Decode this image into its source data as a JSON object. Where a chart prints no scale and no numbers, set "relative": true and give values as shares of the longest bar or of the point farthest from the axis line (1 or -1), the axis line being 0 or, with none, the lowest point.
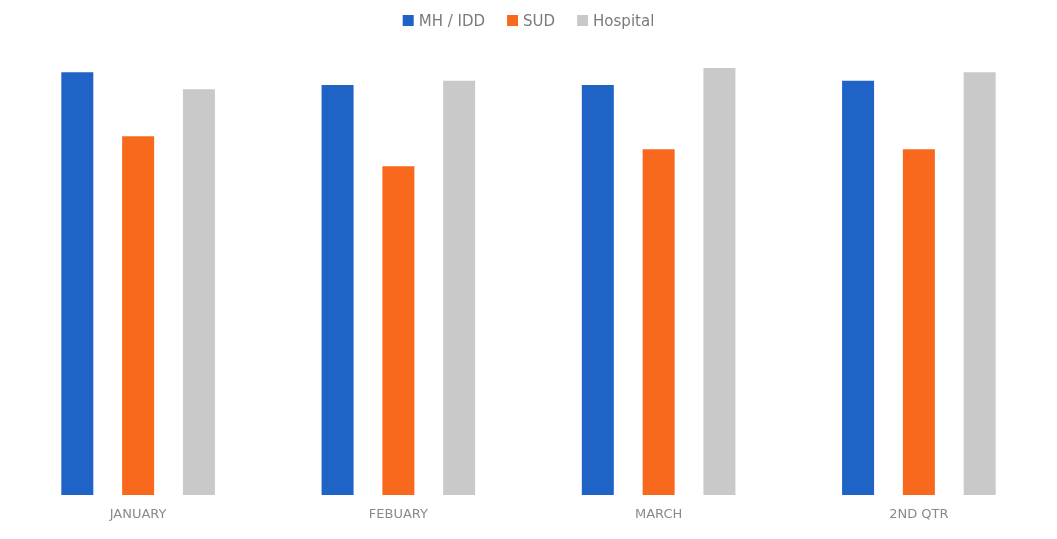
{
  "chart_data": {
    "type": "bar",
    "relative": true,
    "categories": [
      "JANUARY",
      "FEBUARY",
      "MARCH",
      "2ND QTR"
    ],
    "series": [
      {
        "name": "MH / IDD",
        "color": "#1f63c6",
        "values": [
          0.99,
          0.96,
          0.96,
          0.97
        ]
      },
      {
        "name": "SUD",
        "color": "#f8691d",
        "values": [
          0.84,
          0.77,
          0.81,
          0.81
        ]
      },
      {
        "name": "Hospital",
        "color": "#c9c9c9",
        "values": [
          0.95,
          0.97,
          1,
          0.99
        ]
      }
    ],
    "legend": "top"
  }
}
